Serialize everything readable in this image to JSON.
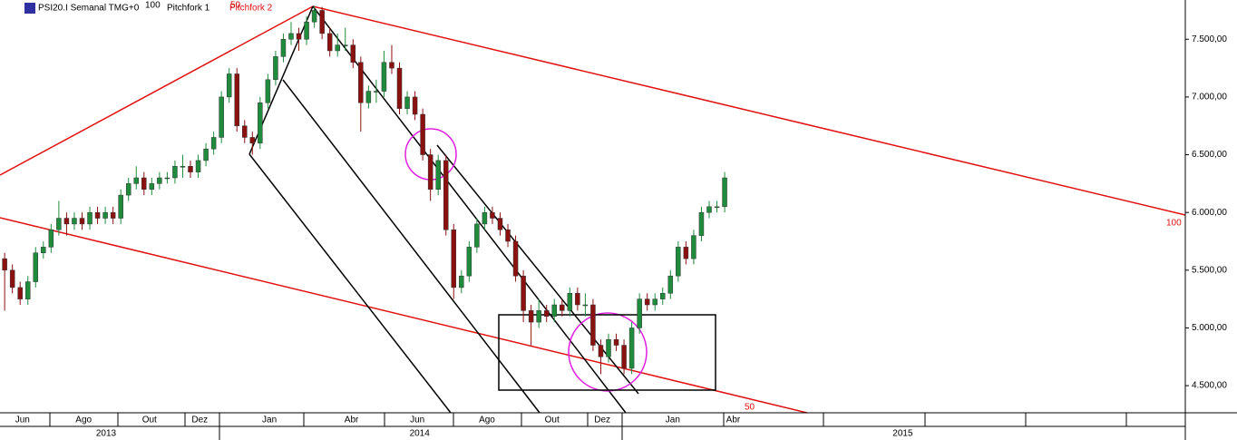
{
  "chart_data": {
    "type": "candlestick",
    "legend": [
      "PSI20.I Semanal TMG+0",
      "Pitchfork 1",
      "Pitchfork 2"
    ],
    "annotations": [
      "100",
      "50",
      "100",
      "50"
    ],
    "up_color": "#1e8c3c",
    "down_color": "#8b1010",
    "ylim": [
      4265,
      7840
    ],
    "xlim": [
      -0.6,
      152.5
    ],
    "yticks": [
      {
        "value": 7500,
        "label": "7.500,00"
      },
      {
        "value": 7000,
        "label": "7.000,00"
      },
      {
        "value": 6500,
        "label": "6.500,00"
      },
      {
        "value": 6000,
        "label": "6.000,00"
      },
      {
        "value": 5500,
        "label": "5.500,00"
      },
      {
        "value": 5000,
        "label": "5.000,00"
      },
      {
        "value": 4500,
        "label": "4.500,00"
      }
    ],
    "xticks": [
      {
        "value": 2.3,
        "label": "Jun"
      },
      {
        "value": 10.2,
        "label": "Ago"
      },
      {
        "value": 18.7,
        "label": "Out"
      },
      {
        "value": 25.2,
        "label": "Dez"
      },
      {
        "value": 34.2,
        "label": "Jan"
      },
      {
        "value": 44.8,
        "label": "Abr"
      },
      {
        "value": 53.3,
        "label": "Jun"
      },
      {
        "value": 62.3,
        "label": "Ago"
      },
      {
        "value": 70.7,
        "label": "Out"
      },
      {
        "value": 77.2,
        "label": "Dez"
      },
      {
        "value": 86.3,
        "label": "Jan"
      },
      {
        "value": 94.1,
        "label": "Abr"
      }
    ],
    "year_ticks": [
      {
        "value": 13.1,
        "label": "2013"
      },
      {
        "value": 53.6,
        "label": "2014"
      },
      {
        "value": 116,
        "label": "2015"
      }
    ],
    "ohlc": [
      [
        5600,
        5650,
        5150,
        5500
      ],
      [
        5500,
        5550,
        5300,
        5350
      ],
      [
        5350,
        5400,
        5200,
        5250
      ],
      [
        5250,
        5450,
        5200,
        5400
      ],
      [
        5400,
        5700,
        5350,
        5650
      ],
      [
        5650,
        5750,
        5600,
        5700
      ],
      [
        5700,
        5900,
        5650,
        5850
      ],
      [
        5850,
        6100,
        5800,
        5950
      ],
      [
        5950,
        6000,
        5800,
        5900
      ],
      [
        5900,
        6000,
        5850,
        5950
      ],
      [
        5950,
        6000,
        5850,
        5900
      ],
      [
        5900,
        6050,
        5850,
        6000
      ],
      [
        6000,
        6050,
        5900,
        5950
      ],
      [
        5950,
        6050,
        5900,
        6000
      ],
      [
        6000,
        6050,
        5900,
        5950
      ],
      [
        5950,
        6200,
        5900,
        6150
      ],
      [
        6150,
        6300,
        6100,
        6250
      ],
      [
        6250,
        6400,
        6200,
        6300
      ],
      [
        6300,
        6350,
        6150,
        6200
      ],
      [
        6200,
        6300,
        6150,
        6250
      ],
      [
        6250,
        6350,
        6200,
        6300
      ],
      [
        6300,
        6350,
        6250,
        6300
      ],
      [
        6300,
        6450,
        6250,
        6400
      ],
      [
        6400,
        6500,
        6300,
        6400
      ],
      [
        6400,
        6450,
        6300,
        6350
      ],
      [
        6350,
        6500,
        6300,
        6450
      ],
      [
        6450,
        6600,
        6400,
        6550
      ],
      [
        6550,
        6700,
        6500,
        6650
      ],
      [
        6650,
        7050,
        6600,
        7000
      ],
      [
        7000,
        7250,
        6950,
        7200
      ],
      [
        7200,
        7250,
        6700,
        6750
      ],
      [
        6750,
        6800,
        6600,
        6650
      ],
      [
        6650,
        6700,
        6500,
        6600
      ],
      [
        6600,
        7000,
        6550,
        6950
      ],
      [
        6950,
        7200,
        6900,
        7150
      ],
      [
        7150,
        7400,
        7100,
        7350
      ],
      [
        7350,
        7550,
        7300,
        7500
      ],
      [
        7500,
        7650,
        7450,
        7550
      ],
      [
        7550,
        7600,
        7400,
        7500
      ],
      [
        7500,
        7700,
        7450,
        7650
      ],
      [
        7650,
        7790,
        7600,
        7750
      ],
      [
        7750,
        7780,
        7500,
        7550
      ],
      [
        7550,
        7600,
        7350,
        7400
      ],
      [
        7400,
        7550,
        7350,
        7450
      ],
      [
        7450,
        7600,
        7400,
        7450
      ],
      [
        7450,
        7500,
        7250,
        7300
      ],
      [
        7300,
        7350,
        6700,
        6950
      ],
      [
        6950,
        7100,
        6900,
        7050
      ],
      [
        7050,
        7150,
        6950,
        7050
      ],
      [
        7050,
        7400,
        7000,
        7300
      ],
      [
        7300,
        7450,
        7200,
        7250
      ],
      [
        7250,
        7300,
        6850,
        6900
      ],
      [
        6900,
        7050,
        6850,
        7000
      ],
      [
        7000,
        7050,
        6800,
        6850
      ],
      [
        6850,
        6900,
        6450,
        6500
      ],
      [
        6500,
        6550,
        6100,
        6200
      ],
      [
        6200,
        6500,
        6150,
        6450
      ],
      [
        6450,
        6500,
        5800,
        5850
      ],
      [
        5850,
        5900,
        5250,
        5350
      ],
      [
        5350,
        5500,
        5300,
        5450
      ],
      [
        5450,
        5750,
        5400,
        5700
      ],
      [
        5700,
        5950,
        5650,
        5900
      ],
      [
        5900,
        6050,
        5850,
        6000
      ],
      [
        6000,
        6050,
        5900,
        5950
      ],
      [
        5950,
        6000,
        5800,
        5850
      ],
      [
        5850,
        5900,
        5700,
        5750
      ],
      [
        5750,
        5800,
        5400,
        5450
      ],
      [
        5450,
        5500,
        5050,
        5150
      ],
      [
        5150,
        5200,
        4850,
        5050
      ],
      [
        5050,
        5250,
        5000,
        5150
      ],
      [
        5150,
        5200,
        5050,
        5100
      ],
      [
        5100,
        5250,
        5050,
        5200
      ],
      [
        5200,
        5250,
        5100,
        5150
      ],
      [
        5150,
        5350,
        5100,
        5300
      ],
      [
        5300,
        5350,
        5150,
        5200
      ],
      [
        5200,
        5300,
        5100,
        5200
      ],
      [
        5200,
        5250,
        4800,
        4850
      ],
      [
        4850,
        4900,
        4600,
        4750
      ],
      [
        4750,
        4950,
        4700,
        4900
      ],
      [
        4900,
        4950,
        4800,
        4850
      ],
      [
        4850,
        4900,
        4600,
        4650
      ],
      [
        4650,
        5050,
        4600,
        5000
      ],
      [
        5000,
        5300,
        4950,
        5250
      ],
      [
        5250,
        5300,
        5150,
        5200
      ],
      [
        5200,
        5300,
        5150,
        5250
      ],
      [
        5250,
        5350,
        5200,
        5300
      ],
      [
        5300,
        5500,
        5250,
        5450
      ],
      [
        5450,
        5750,
        5400,
        5700
      ],
      [
        5700,
        5750,
        5550,
        5600
      ],
      [
        5600,
        5850,
        5550,
        5800
      ],
      [
        5800,
        6050,
        5750,
        6000
      ],
      [
        6000,
        6100,
        5950,
        6050
      ],
      [
        6050,
        6100,
        6000,
        6050
      ],
      [
        6050,
        6350,
        6000,
        6300
      ]
    ]
  }
}
